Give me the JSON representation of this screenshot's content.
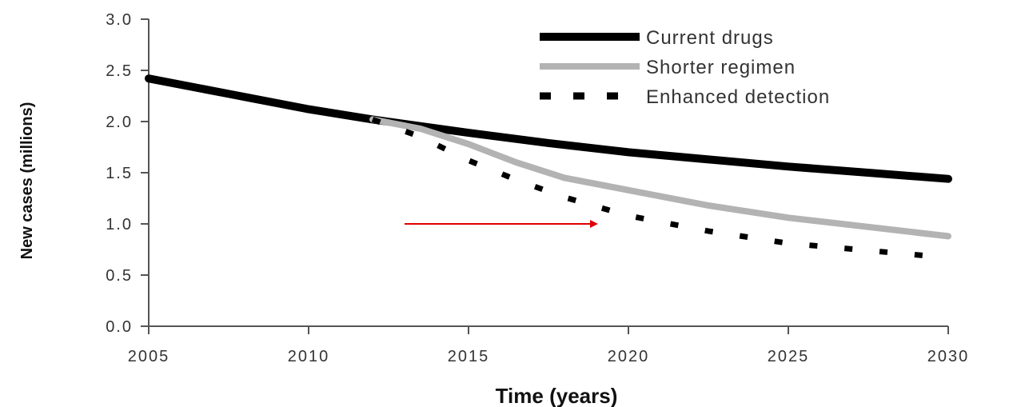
{
  "chart_data": {
    "type": "line",
    "title": "",
    "xlabel": "Time (years)",
    "ylabel": "New cases (millions)",
    "xlim": [
      2005,
      2030
    ],
    "ylim": [
      0,
      3
    ],
    "x_ticks": [
      2005,
      2010,
      2015,
      2020,
      2025,
      2030
    ],
    "y_ticks": [
      0,
      0.5,
      1,
      1.5,
      2,
      2.5,
      3
    ],
    "x_tick_labels": [
      "2005",
      "2010",
      "2015",
      "2020",
      "2025",
      "2030"
    ],
    "y_tick_labels": [
      "0.0",
      "0.5",
      "1.0",
      "1.5",
      "2.0",
      "2.5",
      "3.0"
    ],
    "grid": false,
    "legend_position": "top-right",
    "series": [
      {
        "name": "Current drugs",
        "color": "#000000",
        "style": "solid",
        "x": [
          2005,
          2007.5,
          2010,
          2012,
          2015,
          2017.5,
          2020,
          2022.5,
          2025,
          2027.5,
          2030
        ],
        "y": [
          2.42,
          2.27,
          2.12,
          2.02,
          1.89,
          1.79,
          1.7,
          1.63,
          1.56,
          1.5,
          1.44
        ]
      },
      {
        "name": "Shorter regimen",
        "color": "#b3b3b3",
        "style": "solid",
        "x": [
          2012,
          2013.5,
          2015,
          2016.5,
          2018,
          2020,
          2022.5,
          2025,
          2027.5,
          2030
        ],
        "y": [
          2.02,
          1.93,
          1.78,
          1.6,
          1.45,
          1.33,
          1.18,
          1.06,
          0.97,
          0.88
        ]
      },
      {
        "name": "Enhanced detection",
        "color": "#000000",
        "style": "dashed",
        "x": [
          2012,
          2013.5,
          2015,
          2016.5,
          2018,
          2020,
          2022.5,
          2025,
          2027.5,
          2030
        ],
        "y": [
          2.02,
          1.85,
          1.62,
          1.43,
          1.26,
          1.08,
          0.93,
          0.81,
          0.74,
          0.67
        ]
      }
    ],
    "annotation": {
      "type": "arrow",
      "color": "#e00000",
      "x_from": 2013,
      "x_to": 2019,
      "y": 1.0
    }
  }
}
